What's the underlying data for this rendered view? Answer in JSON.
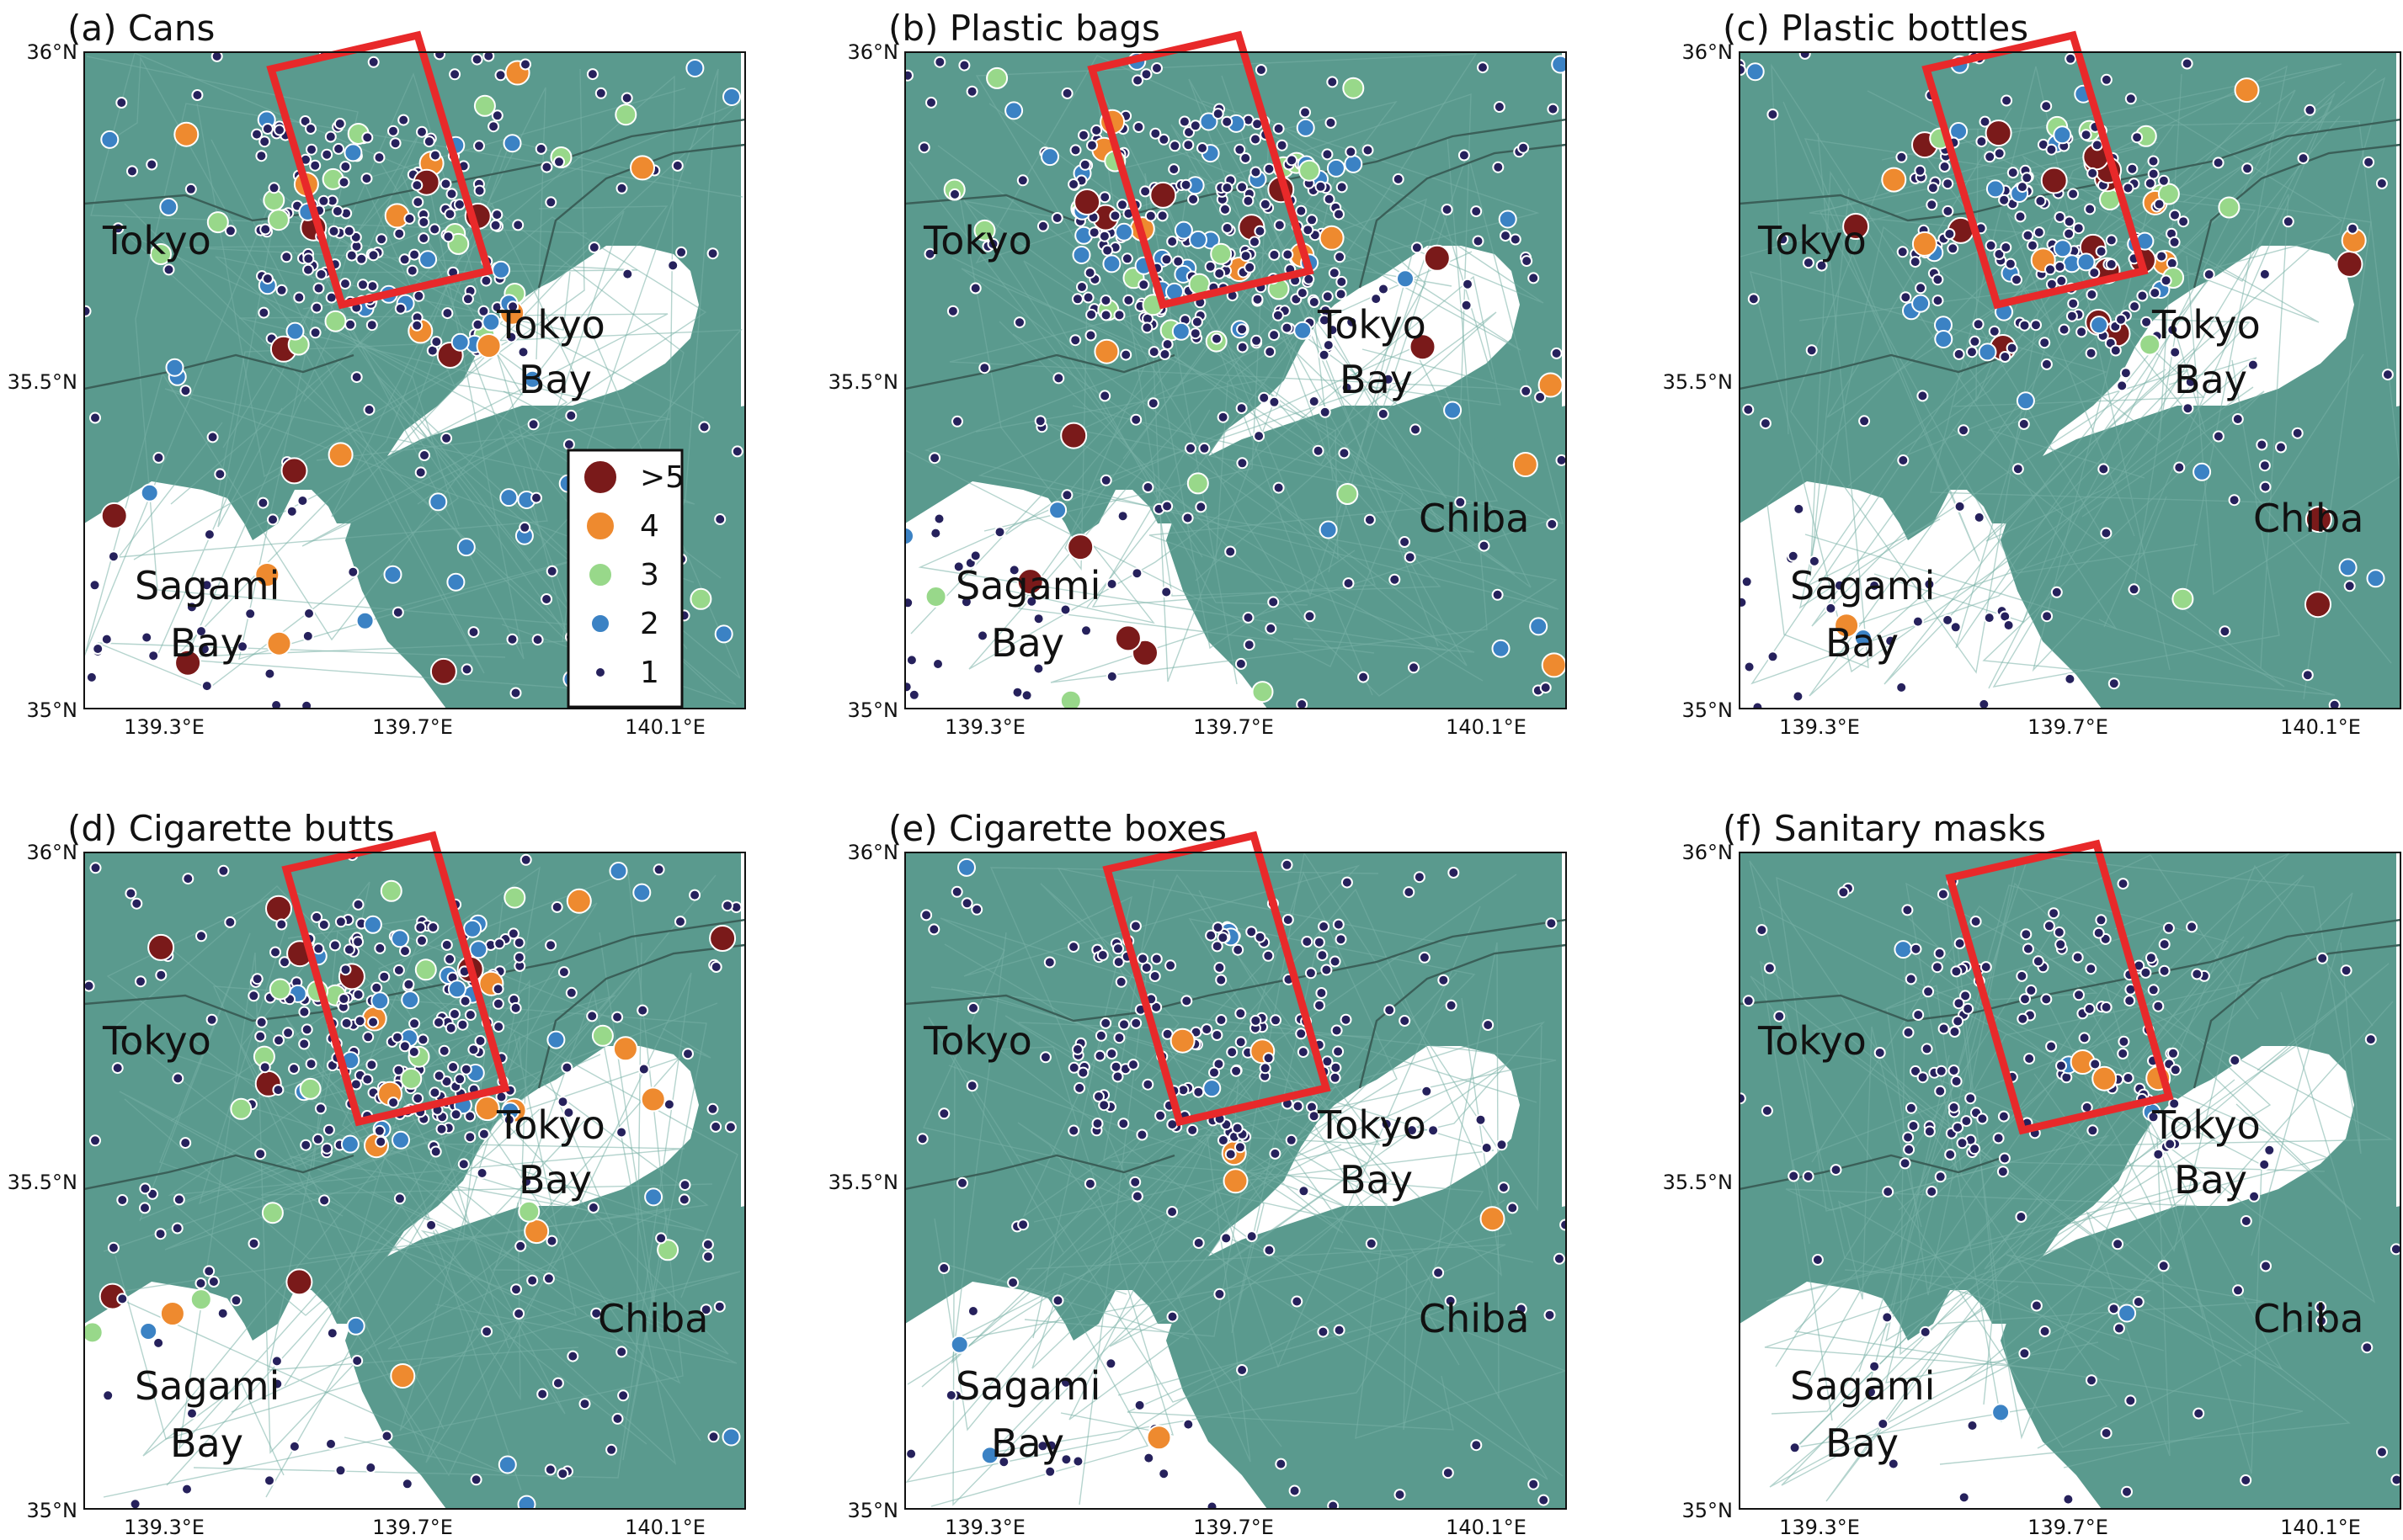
{
  "figure": {
    "type": "multi-panel-map"
  },
  "axes": {
    "lon_ticks": [
      "139.3°E",
      "139.7°E",
      "140.1°E"
    ],
    "lat_ticks": [
      "36°N",
      "35.5°N",
      "35°N"
    ]
  },
  "places": {
    "tokyo": "Tokyo",
    "tokyo_bay": [
      "Tokyo",
      "Bay"
    ],
    "sagami_bay": [
      "Sagami",
      "Bay"
    ],
    "chiba": "Chiba"
  },
  "legend": {
    "entries": [
      {
        "label": ">5",
        "color": "#7a1a1a"
      },
      {
        "label": "4",
        "color": "#ee8a2f"
      },
      {
        "label": "3",
        "color": "#98d88a"
      },
      {
        "label": "2",
        "color": "#3b82c4"
      },
      {
        "label": "1",
        "color": "#26215c"
      }
    ]
  },
  "colors": {
    "land": "#5a9a8e",
    "sea": "#ffffff",
    "highlight_box": "#e8292a",
    "boundary": "#3a5f58",
    "sub_boundary": "#79b0a6"
  },
  "panels": [
    {
      "id": "a",
      "title": "(a) Cans",
      "has_legend": true
    },
    {
      "id": "b",
      "title": "(b) Plastic bags",
      "has_legend": false
    },
    {
      "id": "c",
      "title": "(c) Plastic bottles",
      "has_legend": false
    },
    {
      "id": "d",
      "title": "(d) Cigarette butts",
      "has_legend": false
    },
    {
      "id": "e",
      "title": "(e) Cigarette boxes",
      "has_legend": false
    },
    {
      "id": "f",
      "title": "(f) Sanitary masks",
      "has_legend": false
    }
  ]
}
